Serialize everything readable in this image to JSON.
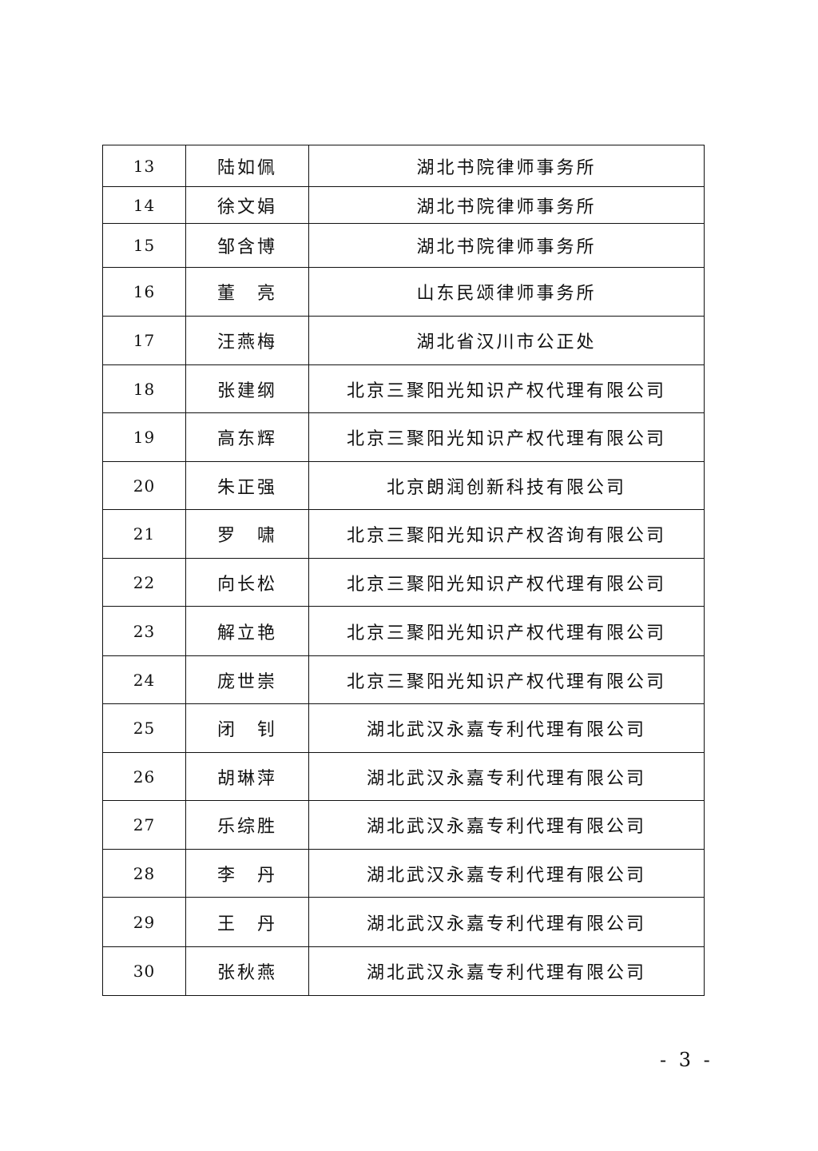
{
  "rows": [
    {
      "no": "13",
      "name": "陆如佩",
      "org": "湖北书院律师事务所"
    },
    {
      "no": "14",
      "name": "徐文娟",
      "org": "湖北书院律师事务所"
    },
    {
      "no": "15",
      "name": "邹含博",
      "org": "湖北书院律师事务所"
    },
    {
      "no": "16",
      "name": "董　亮",
      "org": "山东民颂律师事务所"
    },
    {
      "no": "17",
      "name": "汪燕梅",
      "org": "湖北省汉川市公正处"
    },
    {
      "no": "18",
      "name": "张建纲",
      "org": "北京三聚阳光知识产权代理有限公司"
    },
    {
      "no": "19",
      "name": "高东辉",
      "org": "北京三聚阳光知识产权代理有限公司"
    },
    {
      "no": "20",
      "name": "朱正强",
      "org": "北京朗润创新科技有限公司"
    },
    {
      "no": "21",
      "name": "罗　啸",
      "org": "北京三聚阳光知识产权咨询有限公司"
    },
    {
      "no": "22",
      "name": "向长松",
      "org": "北京三聚阳光知识产权代理有限公司"
    },
    {
      "no": "23",
      "name": "解立艳",
      "org": "北京三聚阳光知识产权代理有限公司"
    },
    {
      "no": "24",
      "name": "庞世崇",
      "org": "北京三聚阳光知识产权代理有限公司"
    },
    {
      "no": "25",
      "name": "闭　钊",
      "org": "湖北武汉永嘉专利代理有限公司"
    },
    {
      "no": "26",
      "name": "胡琳萍",
      "org": "湖北武汉永嘉专利代理有限公司"
    },
    {
      "no": "27",
      "name": "乐综胜",
      "org": "湖北武汉永嘉专利代理有限公司"
    },
    {
      "no": "28",
      "name": "李　丹",
      "org": "湖北武汉永嘉专利代理有限公司"
    },
    {
      "no": "29",
      "name": "王　丹",
      "org": "湖北武汉永嘉专利代理有限公司"
    },
    {
      "no": "30",
      "name": "张秋燕",
      "org": "湖北武汉永嘉专利代理有限公司"
    }
  ],
  "page_number": "- 3 -"
}
